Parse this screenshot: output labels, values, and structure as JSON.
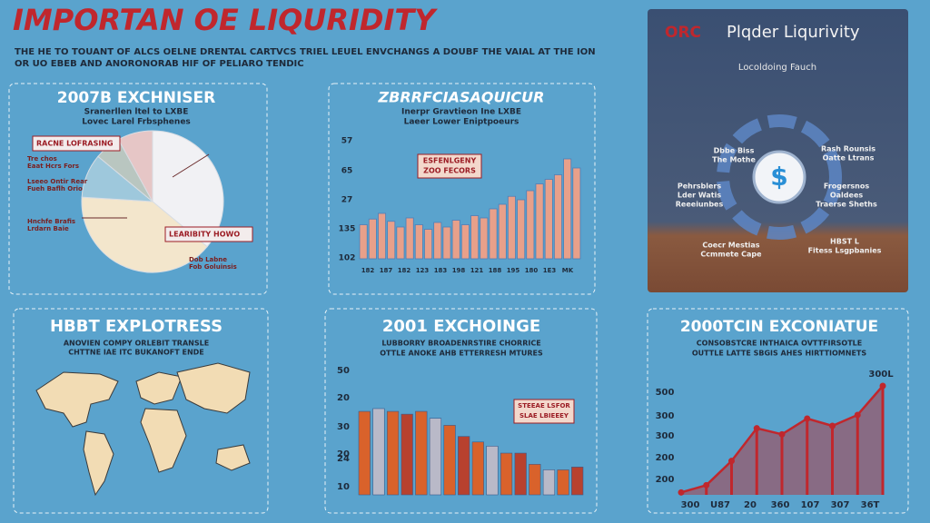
{
  "header": {
    "title": "IMPORTAN OE LIQURIDITY",
    "lines": [
      "THE HE TO TOUANT OF ALCS OELNE DRENTAL CARTVCS TRIEL LEUEL ENVCHANGS A DOUBF THE VAIAL AT THE ION",
      "OR UO EBEB AND ANORONORAB HIF OF PELIARO TENDIC"
    ]
  },
  "pie_panel": {
    "title": "2007B EXCHNISER",
    "lines": [
      "Sranerllen ltel to LXBE",
      "Lovec Larel Frbsphenes"
    ],
    "callouts": [
      "RACNE LOFRASING",
      "LEARIBITY HOWO"
    ],
    "notes": [
      "Tre chos",
      "Eaat Hcrs Fors",
      "Lseeo Ontir Rear",
      "Fueh Baflh Orio",
      "Hnchfe Brafis",
      "Lrdarn Baie",
      "Dob Labne",
      "Fob Goluinsis"
    ],
    "values": [
      36,
      40,
      10,
      6,
      8
    ],
    "colors": [
      "#f1f1f4",
      "#f3e6cc",
      "#9ec8dc",
      "#b9c6c0",
      "#e6c6c6"
    ]
  },
  "bars_panel": {
    "title": "ZBRRFCIASAQUICUR",
    "lines": [
      "Inerpr Gravtieon Ine LXBE",
      "Laeer Lower Eniptpoeurs"
    ],
    "callout": [
      "ESFENLGENY",
      "ZOO FECORS"
    ],
    "ylabels": [
      "57",
      "65",
      "27",
      "135",
      "102"
    ],
    "xlabels": [
      "182",
      "187",
      "182",
      "123",
      "183",
      "198",
      "121",
      "188",
      "195",
      "180",
      "1E3",
      "MK"
    ],
    "values": [
      30,
      35,
      40,
      33,
      28,
      36,
      30,
      26,
      32,
      28,
      34,
      30,
      38,
      36,
      44,
      48,
      55,
      52,
      60,
      66,
      70,
      74,
      88,
      80
    ],
    "color": "#e8a08a"
  },
  "liquidity_panel": {
    "brand": "ORC",
    "title": "Plqder Liqurivity",
    "subtitle": "Locoldoing Fauch",
    "symbol": "$",
    "nodes": [
      [
        "Dbbe Biss",
        "The Mothe"
      ],
      [
        "Rash Rounsis",
        "Oatte Ltrans"
      ],
      [
        "Pehrsblers",
        "Lder Watis",
        "Reeeiunbes"
      ],
      [
        "Frogersnos",
        "Oaldees",
        "Traerse Sheths"
      ],
      [
        "Coecr Mestias",
        "Ccmmete Cape"
      ],
      [
        "HBST L",
        "Fitess Lsgpbanies"
      ]
    ]
  },
  "map_panel": {
    "title": "HBBT EXPLOTRESS",
    "lines": [
      "ANOVIEN COMPY ORLEBIT TRANSLE",
      "CHTTNE IAE ITC BUKANOFT ENDE"
    ]
  },
  "grouped_panel": {
    "title": "2001 EXCHOINGE",
    "lines": [
      "LUBBORRY BROADENRSTIRE CHORRICE",
      "OTTLE ANOKE AHB ETTERRESH MTURES"
    ],
    "callout": [
      "STEEAE LSFOR",
      "SLAE LBIEEEY"
    ],
    "ylabels": [
      "50",
      "20",
      "30",
      "20",
      "24",
      "10"
    ],
    "values": [
      60,
      62,
      60,
      58,
      60,
      55,
      50,
      42,
      38,
      35,
      30,
      30,
      22,
      18,
      18,
      20
    ],
    "colors": [
      "#d9622b",
      "#b9b9c8",
      "#d9622b",
      "#b8412e"
    ]
  },
  "area_panel": {
    "title": "2000TCIN EXCONIATUE",
    "lines": [
      "CONSOBSTCRE INTHAICA OVTTFIRSOTLE",
      "OUTTLE LATTE SBGIS AHES HIRTTIOMNETS"
    ],
    "note": "300L",
    "ylabels": [
      "500",
      "300",
      "300",
      "200",
      "200"
    ],
    "xlabels": [
      "300",
      "U87",
      "20",
      "360",
      "107",
      "307",
      "36T"
    ],
    "values": [
      2,
      8,
      28,
      55,
      50,
      63,
      57,
      66,
      90
    ],
    "color": "#c0272d"
  }
}
